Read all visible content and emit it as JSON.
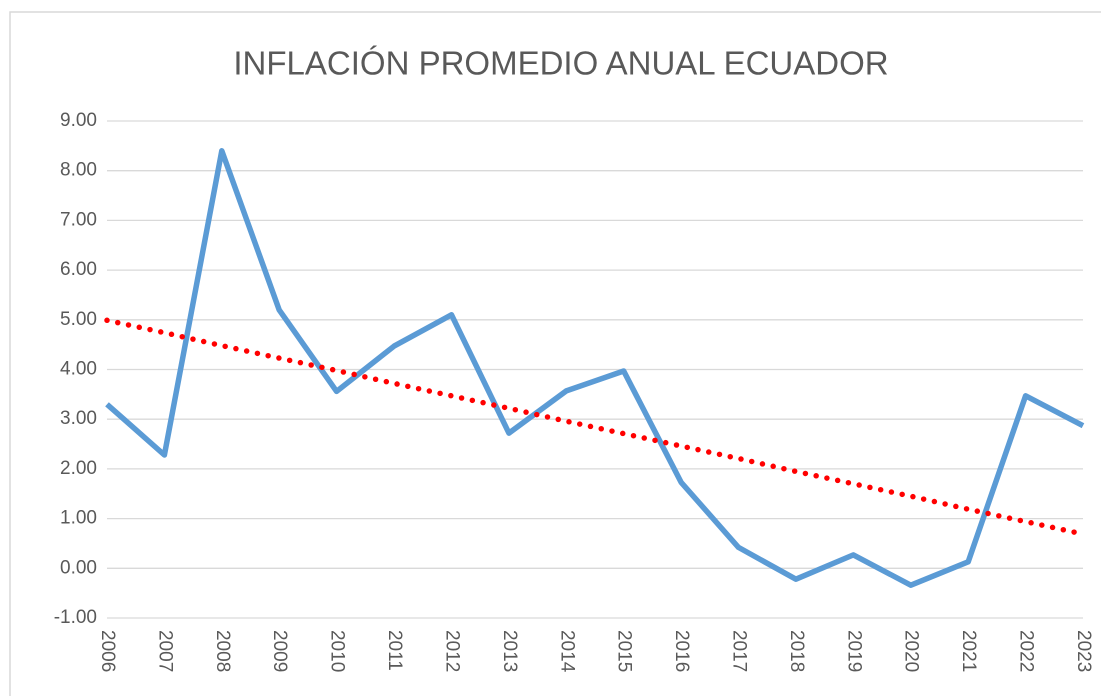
{
  "chart_data": {
    "type": "line",
    "title": "INFLACIÓN PROMEDIO ANUAL ECUADOR",
    "categories": [
      "2006",
      "2007",
      "2008",
      "2009",
      "2010",
      "2011",
      "2012",
      "2013",
      "2014",
      "2015",
      "2016",
      "2017",
      "2018",
      "2019",
      "2020",
      "2021",
      "2022",
      "2023"
    ],
    "series": [
      {
        "color": "#5b9bd5",
        "style": "solid",
        "values": [
          3.3,
          2.28,
          8.4,
          5.2,
          3.56,
          4.47,
          5.1,
          2.72,
          3.57,
          3.97,
          1.73,
          0.42,
          -0.22,
          0.27,
          -0.34,
          0.13,
          3.47,
          2.87
        ]
      },
      {
        "color": "#ff0000",
        "style": "dotted",
        "values": [
          4.99,
          4.74,
          4.48,
          4.23,
          3.98,
          3.72,
          3.47,
          3.22,
          2.96,
          2.71,
          2.46,
          2.21,
          1.95,
          1.7,
          1.45,
          1.19,
          0.94,
          0.69
        ]
      }
    ],
    "ylim": [
      -1,
      9
    ],
    "yticks": [
      {
        "value": -1,
        "label": "-1.00"
      },
      {
        "value": 0,
        "label": "0.00"
      },
      {
        "value": 1,
        "label": "1.00"
      },
      {
        "value": 2,
        "label": "2.00"
      },
      {
        "value": 3,
        "label": "3.00"
      },
      {
        "value": 4,
        "label": "4.00"
      },
      {
        "value": 5,
        "label": "5.00"
      },
      {
        "value": 6,
        "label": "6.00"
      },
      {
        "value": 7,
        "label": "7.00"
      },
      {
        "value": 8,
        "label": "8.00"
      },
      {
        "value": 9,
        "label": "9.00"
      }
    ],
    "grid": true
  }
}
